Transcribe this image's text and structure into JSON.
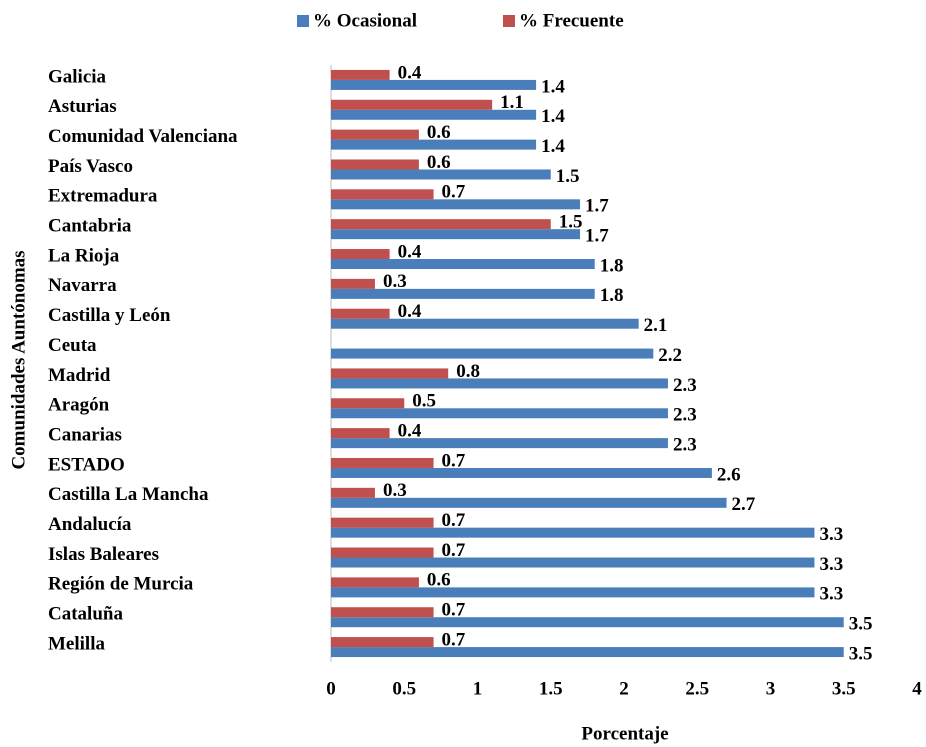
{
  "chart_data": {
    "type": "hbar",
    "x_label": "Porcentaje",
    "y_label": "Comunidades Auntónomas",
    "categories": [
      "Galicia",
      "Asturias",
      "Comunidad Valenciana",
      "País Vasco",
      "Extremadura",
      "Cantabria",
      "La Rioja",
      "Navarra",
      "Castilla y León",
      "Ceuta",
      "Madrid",
      "Aragón",
      "Canarias",
      "ESTADO",
      "Castilla La Mancha",
      "Andalucía",
      "Islas Baleares",
      "Región de Murcia",
      "Cataluña",
      "Melilla"
    ],
    "series": [
      {
        "name": "% Ocasional",
        "color": "#4a7ebb",
        "values": [
          1.4,
          1.4,
          1.4,
          1.5,
          1.7,
          1.7,
          1.8,
          1.8,
          2.1,
          2.2,
          2.3,
          2.3,
          2.3,
          2.6,
          2.7,
          3.3,
          3.3,
          3.3,
          3.5,
          3.5
        ]
      },
      {
        "name": "% Frecuente",
        "color": "#c0504d",
        "values": [
          0.4,
          1.1,
          0.6,
          0.6,
          0.7,
          1.5,
          0.4,
          0.3,
          0.4,
          null,
          0.8,
          0.5,
          0.4,
          0.7,
          0.3,
          0.7,
          0.7,
          0.6,
          0.7,
          0.7
        ]
      }
    ],
    "xlim": [
      0,
      4
    ],
    "xticks": [
      0,
      0.5,
      1,
      1.5,
      2,
      2.5,
      3,
      3.5,
      4
    ],
    "legend": "top",
    "grid": false
  }
}
